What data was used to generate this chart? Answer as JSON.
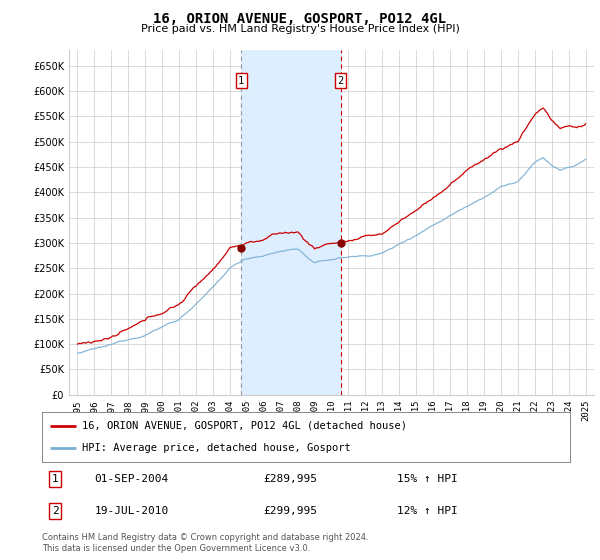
{
  "title": "16, ORION AVENUE, GOSPORT, PO12 4GL",
  "subtitle": "Price paid vs. HM Land Registry's House Price Index (HPI)",
  "ylim": [
    0,
    680000
  ],
  "yticks": [
    0,
    50000,
    100000,
    150000,
    200000,
    250000,
    300000,
    350000,
    400000,
    450000,
    500000,
    550000,
    600000,
    650000
  ],
  "ytick_labels": [
    "£0",
    "£50K",
    "£100K",
    "£150K",
    "£200K",
    "£250K",
    "£300K",
    "£350K",
    "£400K",
    "£450K",
    "£500K",
    "£550K",
    "£600K",
    "£650K"
  ],
  "xlim_min": 1994.5,
  "xlim_max": 2025.5,
  "xticks": [
    1995,
    1996,
    1997,
    1998,
    1999,
    2000,
    2001,
    2002,
    2003,
    2004,
    2005,
    2006,
    2007,
    2008,
    2009,
    2010,
    2011,
    2012,
    2013,
    2014,
    2015,
    2016,
    2017,
    2018,
    2019,
    2020,
    2021,
    2022,
    2023,
    2024,
    2025
  ],
  "transaction_dates": [
    2004.67,
    2010.54
  ],
  "transaction_labels": [
    "1",
    "2"
  ],
  "transaction_prices": [
    289995,
    299995
  ],
  "transaction_info": [
    {
      "num": "1",
      "date": "01-SEP-2004",
      "price": "£289,995",
      "hpi": "15% ↑ HPI"
    },
    {
      "num": "2",
      "date": "19-JUL-2010",
      "price": "£299,995",
      "hpi": "12% ↑ HPI"
    }
  ],
  "legend_entries": [
    {
      "label": "16, ORION AVENUE, GOSPORT, PO12 4GL (detached house)",
      "color": "#cc0000"
    },
    {
      "label": "HPI: Average price, detached house, Gosport",
      "color": "#7ab0d4"
    }
  ],
  "footer": "Contains HM Land Registry data © Crown copyright and database right 2024.\nThis data is licensed under the Open Government Licence v3.0.",
  "red_color": "#cc0000",
  "blue_color": "#7ab0d4",
  "shaded_color": "#ddeeff",
  "grid_color": "#cccccc",
  "background_color": "#ffffff",
  "marker_box_color": "#cc0000",
  "vline1_color": "#999999",
  "vline2_color": "#cc0000"
}
